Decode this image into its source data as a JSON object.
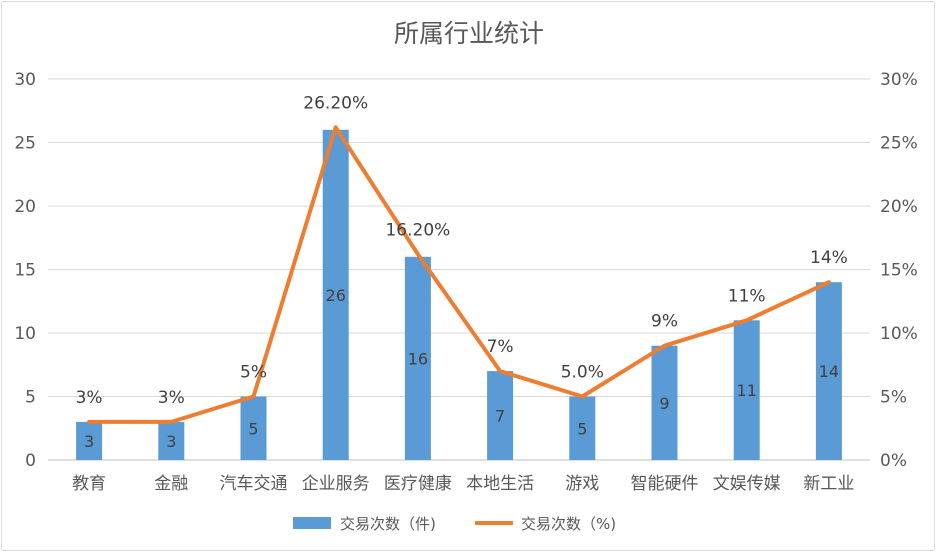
{
  "chart_data": {
    "type": "bar+line",
    "title": "所属行业统计",
    "categories": [
      "教育",
      "金融",
      "汽车交通",
      "企业服务",
      "医疗健康",
      "本地生活",
      "游戏",
      "智能硬件",
      "文娱传媒",
      "新工业"
    ],
    "series": [
      {
        "name": "交易次数（件)",
        "type": "bar",
        "axis": "left",
        "color": "#5B9BD5",
        "values": [
          3,
          3,
          5,
          26,
          16,
          7,
          5,
          9,
          11,
          14
        ],
        "labels": [
          "3",
          "3",
          "5",
          "26",
          "16",
          "7",
          "5",
          "9",
          "11",
          "14"
        ]
      },
      {
        "name": "交易次数（%)",
        "type": "line",
        "axis": "right",
        "color": "#ED7D31",
        "values": [
          3,
          3,
          5,
          26.2,
          16.2,
          7,
          5,
          9,
          11,
          14
        ],
        "labels": [
          "3%",
          "3%",
          "5%",
          "26.20%",
          "16.20%",
          "7%",
          "5.0%",
          "9%",
          "11%",
          "14%"
        ]
      }
    ],
    "y_left": {
      "range": [
        0,
        30
      ],
      "ticks": [
        "0",
        "5",
        "10",
        "15",
        "20",
        "25",
        "30"
      ]
    },
    "y_right": {
      "range": [
        0,
        30
      ],
      "ticks": [
        "0%",
        "5%",
        "10%",
        "15%",
        "20%",
        "25%",
        "30%"
      ]
    },
    "grid": true,
    "legend_position": "bottom"
  }
}
